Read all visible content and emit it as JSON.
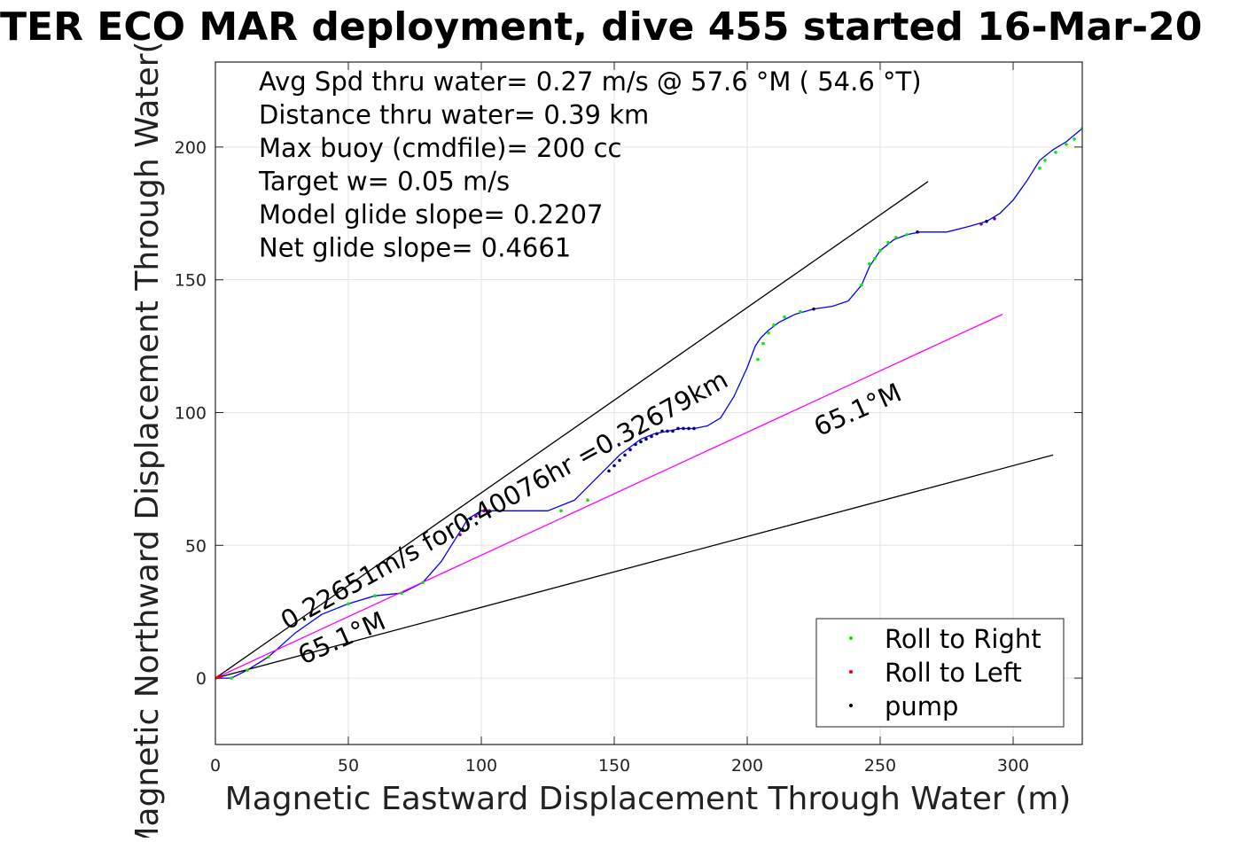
{
  "chart_data": {
    "type": "line",
    "title": "TER ECO MAR deployment, dive 455 started 16-Mar-20",
    "xlabel": "Magnetic Eastward Displacement Through Water (m)",
    "ylabel": "Magnetic Northward Displacement Through Water(",
    "xlim": [
      0,
      326
    ],
    "ylim": [
      -25,
      232
    ],
    "x_ticks": [
      0,
      50,
      100,
      150,
      200,
      250,
      300
    ],
    "y_ticks": [
      0,
      50,
      100,
      150,
      200
    ],
    "grid": true,
    "legend_position": "bottom-right",
    "legend": [
      {
        "label": "Roll to Right",
        "color": "#00ee00"
      },
      {
        "label": "Roll to Left",
        "color": "#ee0000"
      },
      {
        "label": "pump",
        "color": "#000000"
      }
    ],
    "info_lines": [
      "Avg Spd thru water=  0.27 m/s @  57.6 °M ( 54.6 °T)",
      "Distance thru water=  0.39 km",
      "Max buoy (cmdfile)= 200 cc",
      "Target w= 0.05 m/s",
      "Model glide slope= 0.2207",
      "Net glide slope= 0.4661"
    ],
    "annotations": [
      {
        "text": "0.22651m/s for0.40076hr =0.32679km",
        "x": 27,
        "y": 18,
        "angle": 29
      },
      {
        "text": "65.1°M",
        "x": 33,
        "y": 5,
        "angle": 24
      },
      {
        "text": "65.1°M",
        "x": 227,
        "y": 91,
        "angle": 24
      }
    ],
    "series": [
      {
        "role": "glider-track",
        "color": "#0000ff",
        "x": [
          0,
          6,
          12,
          20,
          30,
          40,
          50,
          60,
          70,
          78,
          85,
          90,
          95,
          100,
          103,
          108,
          115,
          125,
          135,
          140,
          145,
          148,
          152,
          156,
          160,
          165,
          170,
          175,
          180,
          185,
          190,
          195,
          200,
          203,
          205,
          208,
          212,
          218,
          225,
          232,
          238,
          243,
          246,
          250,
          255,
          260,
          265,
          275,
          283,
          290,
          295,
          300,
          305,
          310,
          315,
          320,
          326
        ],
        "y": [
          0,
          0,
          3,
          8,
          17,
          24,
          28,
          31,
          32,
          36,
          44,
          52,
          60,
          63,
          63,
          63,
          63,
          63,
          67,
          72,
          77,
          80,
          84,
          87,
          90,
          92,
          93,
          94,
          94,
          95,
          98,
          106,
          117,
          125,
          128,
          131,
          134,
          137,
          139,
          140,
          142,
          148,
          155,
          161,
          165,
          167,
          168,
          168,
          170,
          172,
          175,
          180,
          187,
          195,
          199,
          202,
          207
        ]
      },
      {
        "role": "upper-bound-line",
        "color": "#000000",
        "x": [
          0,
          268
        ],
        "y": [
          0,
          187
        ]
      },
      {
        "role": "lower-bound-line",
        "color": "#000000",
        "x": [
          0,
          315
        ],
        "y": [
          0,
          84
        ]
      },
      {
        "role": "heading-line",
        "color": "#ff00ff",
        "x": [
          0,
          296
        ],
        "y": [
          0,
          137
        ]
      }
    ],
    "markers": {
      "roll_right": {
        "color": "#00ee00",
        "x": [
          6,
          12,
          20,
          50,
          60,
          70,
          78,
          130,
          140,
          204,
          206,
          208,
          210,
          214,
          220,
          243,
          246,
          248,
          250,
          253,
          256,
          260,
          310,
          312,
          316,
          320,
          323,
          326
        ],
        "y": [
          0,
          3,
          8,
          28,
          31,
          32,
          36,
          63,
          67,
          120,
          126,
          130,
          133,
          136,
          138,
          148,
          156,
          158,
          161,
          164,
          166,
          167,
          192,
          195,
          198,
          201,
          203,
          207
        ]
      },
      "roll_left": {
        "color": "#ee0000",
        "x": [
          0,
          1,
          2
        ],
        "y": [
          0,
          0.3,
          0.6
        ]
      },
      "pump": {
        "color": "#000080",
        "x": [
          93,
          96,
          99,
          101,
          103,
          148,
          150,
          152,
          154,
          156,
          158,
          160,
          162,
          164,
          166,
          168,
          170,
          172,
          174,
          176,
          178,
          180,
          225,
          264,
          290
        ],
        "y": [
          56,
          60,
          62,
          63,
          63,
          78,
          80,
          82,
          84,
          86,
          88,
          89,
          90,
          91,
          92,
          93,
          93,
          93,
          94,
          94,
          94,
          94,
          139,
          168,
          172
        ]
      },
      "pump_purple": {
        "color": "#800080",
        "x": [
          92,
          95,
          98,
          101,
          103,
          288,
          293
        ],
        "y": [
          54,
          58,
          61,
          63,
          63,
          171,
          173
        ]
      }
    }
  }
}
